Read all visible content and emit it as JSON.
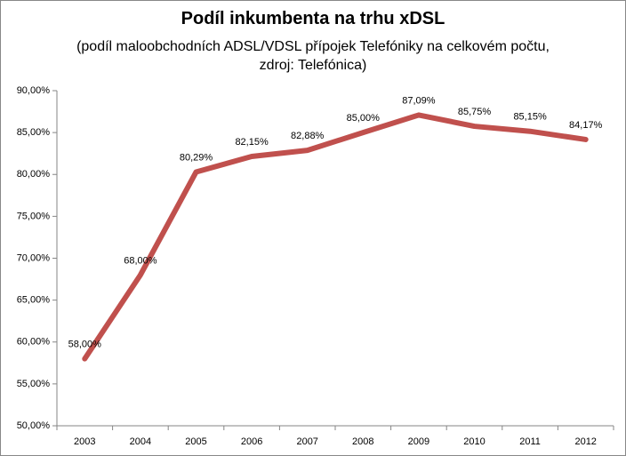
{
  "chart_data": {
    "type": "line",
    "title": "Podíl inkumbenta na trhu xDSL",
    "subtitle": "(podíl maloobchodních ADSL/VDSL přípojek Telefóniky na celkovém počtu, zdroj: Telefónica)",
    "categories": [
      "2003",
      "2004",
      "2005",
      "2006",
      "2007",
      "2008",
      "2009",
      "2010",
      "2011",
      "2012"
    ],
    "values": [
      58,
      68,
      80.29,
      82.15,
      82.88,
      85,
      87.09,
      85.75,
      85.15,
      84.17
    ],
    "value_labels": [
      "58,00%",
      "68,00%",
      "80,29%",
      "82,15%",
      "82,88%",
      "85,00%",
      "87,09%",
      "85,75%",
      "85,15%",
      "84,17%"
    ],
    "color": "#c0504d",
    "ylim": [
      50,
      90
    ],
    "yticks": [
      {
        "value": 50,
        "label": "50,00%"
      },
      {
        "value": 55,
        "label": "55,00%"
      },
      {
        "value": 60,
        "label": "60,00%"
      },
      {
        "value": 65,
        "label": "65,00%"
      },
      {
        "value": 70,
        "label": "70,00%"
      },
      {
        "value": 75,
        "label": "75,00%"
      },
      {
        "value": 80,
        "label": "80,00%"
      },
      {
        "value": 85,
        "label": "85,00%"
      },
      {
        "value": 90,
        "label": "90,00%"
      }
    ],
    "grid": false
  }
}
